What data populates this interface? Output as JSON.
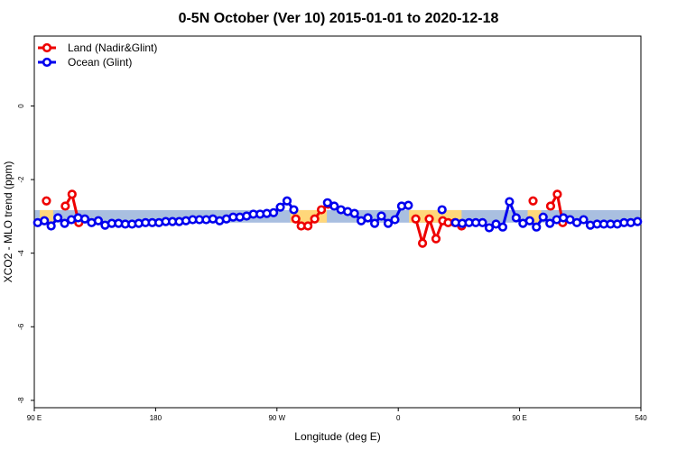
{
  "chart_data": {
    "type": "line",
    "title": "0-5N October (Ver 10)   2015-01-01 to 2020-12-18",
    "x_label": "Longitude (deg E)",
    "y_label": "XCO2 - MLO trend (ppm)",
    "xlim": [
      90,
      540
    ],
    "ylim": [
      -8.2,
      1.9
    ],
    "xticks": [
      {
        "value": 90,
        "label": "90 E"
      },
      180,
      {
        "value": 270,
        "label": "90 W"
      },
      {
        "value": 360,
        "label": "0"
      },
      {
        "value": 450,
        "label": "90 E"
      },
      540
    ],
    "yticks": [
      -8,
      -6,
      -4,
      -2,
      0
    ],
    "legend": "top-left",
    "bands": [
      {
        "color": "#a9bfe0",
        "x": [
          90,
          540
        ],
        "y": [
          -3.17,
          -2.83
        ]
      },
      {
        "color": "#ffd77a",
        "x": [
          94,
          104
        ],
        "y": [
          -3.17,
          -2.83
        ]
      },
      {
        "color": "#ffd77a",
        "x": [
          280,
          307
        ],
        "y": [
          -3.17,
          -2.83
        ]
      },
      {
        "color": "#ffd77a",
        "x": [
          368,
          407
        ],
        "y": [
          -3.17,
          -2.83
        ]
      },
      {
        "color": "#ffd77a",
        "x": [
          456,
          466
        ],
        "y": [
          -3.17,
          -2.83
        ]
      }
    ],
    "series": [
      {
        "name": "Land (Nadir&Glint)",
        "color": "#ee0000",
        "x": [
          99,
          106,
          113,
          118,
          123,
          200,
          284,
          288,
          293,
          298,
          303,
          308,
          340,
          373,
          378,
          383,
          388,
          393,
          397,
          402,
          407,
          430,
          460,
          466,
          473,
          478,
          482
        ],
        "values": [
          -2.58,
          null,
          -2.72,
          -2.4,
          -3.17,
          null,
          -3.07,
          -3.26,
          -3.26,
          -3.07,
          -2.82,
          -2.67,
          null,
          -3.07,
          -3.73,
          -3.07,
          -3.61,
          -3.12,
          -3.17,
          -3.17,
          -3.26,
          null,
          -2.58,
          null,
          -2.72,
          -2.4,
          -3.17
        ]
      },
      {
        "name": "Ocean (Glint)",
        "color": "#0000ee",
        "x": [
          92.5,
          97.5,
          102.5,
          107.5,
          112.5,
          117.5,
          122.5,
          127.5,
          132.5,
          137.5,
          142.5,
          147.5,
          152.5,
          157.5,
          162.5,
          167.5,
          172.5,
          177.5,
          182.5,
          187.5,
          192.5,
          197.5,
          202.5,
          207.5,
          212.5,
          217.5,
          222.5,
          227.5,
          232.5,
          237.5,
          242.5,
          247.5,
          252.5,
          257.5,
          262.5,
          267.5,
          272.5,
          277.5,
          282.5,
          287.5,
          292.5,
          297.5,
          302.5,
          307.5,
          312.5,
          317.5,
          322.5,
          327.5,
          332.5,
          337.5,
          342.5,
          347.5,
          352.5,
          357.5,
          362.5,
          367.5,
          372.5,
          377.5,
          382.5,
          387.5,
          392.5,
          397.5,
          402.5,
          407.5,
          412.5,
          417.5,
          422.5,
          427.5,
          432.5,
          437.5,
          442.5,
          447.5,
          452.5,
          457.5,
          462.5,
          467.5,
          472.5,
          477.5,
          482.5,
          487.5,
          492.5,
          497.5,
          502.5,
          507.5,
          512.5,
          517.5,
          522.5,
          527.5,
          532.5,
          537.5
        ],
        "values": [
          -3.17,
          -3.12,
          -3.26,
          -3.04,
          -3.19,
          -3.09,
          -3.04,
          -3.07,
          -3.17,
          -3.12,
          -3.24,
          -3.19,
          -3.19,
          -3.21,
          -3.21,
          -3.19,
          -3.17,
          -3.17,
          -3.17,
          -3.14,
          -3.14,
          -3.14,
          -3.12,
          -3.09,
          -3.09,
          -3.09,
          -3.07,
          -3.12,
          -3.07,
          -3.02,
          -3.02,
          -2.99,
          -2.94,
          -2.94,
          -2.92,
          -2.9,
          -2.75,
          -2.58,
          -2.82,
          null,
          null,
          null,
          null,
          -2.63,
          -2.72,
          -2.82,
          -2.87,
          -2.92,
          -3.12,
          -3.04,
          -3.19,
          -2.99,
          -3.19,
          -3.09,
          -2.72,
          -2.7,
          null,
          null,
          null,
          null,
          -2.82,
          null,
          -3.17,
          -3.19,
          -3.17,
          -3.17,
          -3.17,
          -3.31,
          -3.21,
          -3.29,
          -2.6,
          -3.04,
          -3.19,
          -3.12,
          -3.29,
          -3.02,
          -3.19,
          -3.09,
          -3.04,
          -3.09,
          -3.17,
          -3.09,
          -3.24,
          -3.21,
          -3.21,
          -3.21,
          -3.21,
          -3.17,
          -3.17,
          -3.14
        ]
      }
    ]
  }
}
